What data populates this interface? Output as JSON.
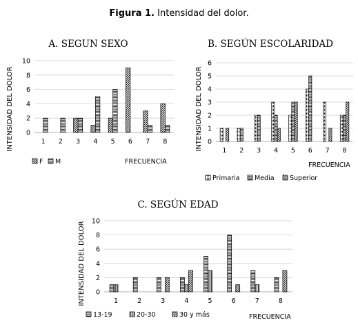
{
  "figure": {
    "label": "Figura 1.",
    "caption": "Intensidad  del dolor."
  },
  "chart_data": [
    {
      "type": "bar",
      "title": "A. SEGUN SEXO",
      "xlabel": "FRECUENCIA",
      "ylabel": "INTENSIDAD DEL DOLOR",
      "categories": [
        "1",
        "2",
        "3",
        "4",
        "5",
        "6",
        "7",
        "8"
      ],
      "ylim": [
        0,
        10
      ],
      "yticks": [
        0,
        2,
        4,
        6,
        8,
        10
      ],
      "grid": true,
      "legend_position": "bottom-left",
      "series": [
        {
          "name": "F",
          "pattern": "diag",
          "values": [
            0,
            0,
            2,
            1,
            2,
            9,
            3,
            4
          ]
        },
        {
          "name": "M",
          "pattern": "hlines",
          "values": [
            2,
            2,
            2,
            5,
            6,
            0,
            1,
            1
          ]
        }
      ]
    },
    {
      "type": "bar",
      "title": "B. SEGÚN ESCOLARIDAD",
      "xlabel": "FRECUENCIA",
      "ylabel": "INTENSIDAD DEL DOLOR",
      "categories": [
        "1",
        "2",
        "3",
        "4",
        "5",
        "6",
        "7",
        "8"
      ],
      "ylim": [
        0,
        6
      ],
      "yticks": [
        0,
        1,
        2,
        3,
        4,
        5,
        6
      ],
      "grid": true,
      "legend_position": "bottom",
      "series": [
        {
          "name": "Primaria",
          "pattern": "dots",
          "values": [
            1,
            1,
            2,
            3,
            2,
            4,
            3,
            2
          ]
        },
        {
          "name": "Media",
          "pattern": "hlines",
          "values": [
            0,
            1,
            2,
            2,
            3,
            5,
            0,
            2
          ]
        },
        {
          "name": "Superior",
          "pattern": "diag",
          "values": [
            1,
            0,
            0,
            1,
            3,
            0,
            1,
            3
          ]
        }
      ]
    },
    {
      "type": "bar",
      "title": "C. SEGÚN EDAD",
      "xlabel": "FRECUENCIA",
      "ylabel": "INTENSIDAD DEL DOLOR",
      "categories": [
        "1",
        "2",
        "3",
        "4",
        "5",
        "6",
        "7",
        "8"
      ],
      "ylim": [
        0,
        10
      ],
      "yticks": [
        0,
        2,
        4,
        6,
        8,
        10
      ],
      "grid": true,
      "legend_position": "bottom-left",
      "series": [
        {
          "name": "13-19",
          "pattern": "hlines",
          "values": [
            1,
            2,
            2,
            2,
            5,
            8,
            3,
            2
          ]
        },
        {
          "name": "20-30",
          "pattern": "vlines",
          "values": [
            1,
            0,
            0,
            1,
            3,
            0,
            1,
            0
          ]
        },
        {
          "name": "30 y más",
          "pattern": "diag",
          "values": [
            0,
            0,
            2,
            3,
            0,
            1,
            0,
            3
          ]
        }
      ]
    }
  ]
}
